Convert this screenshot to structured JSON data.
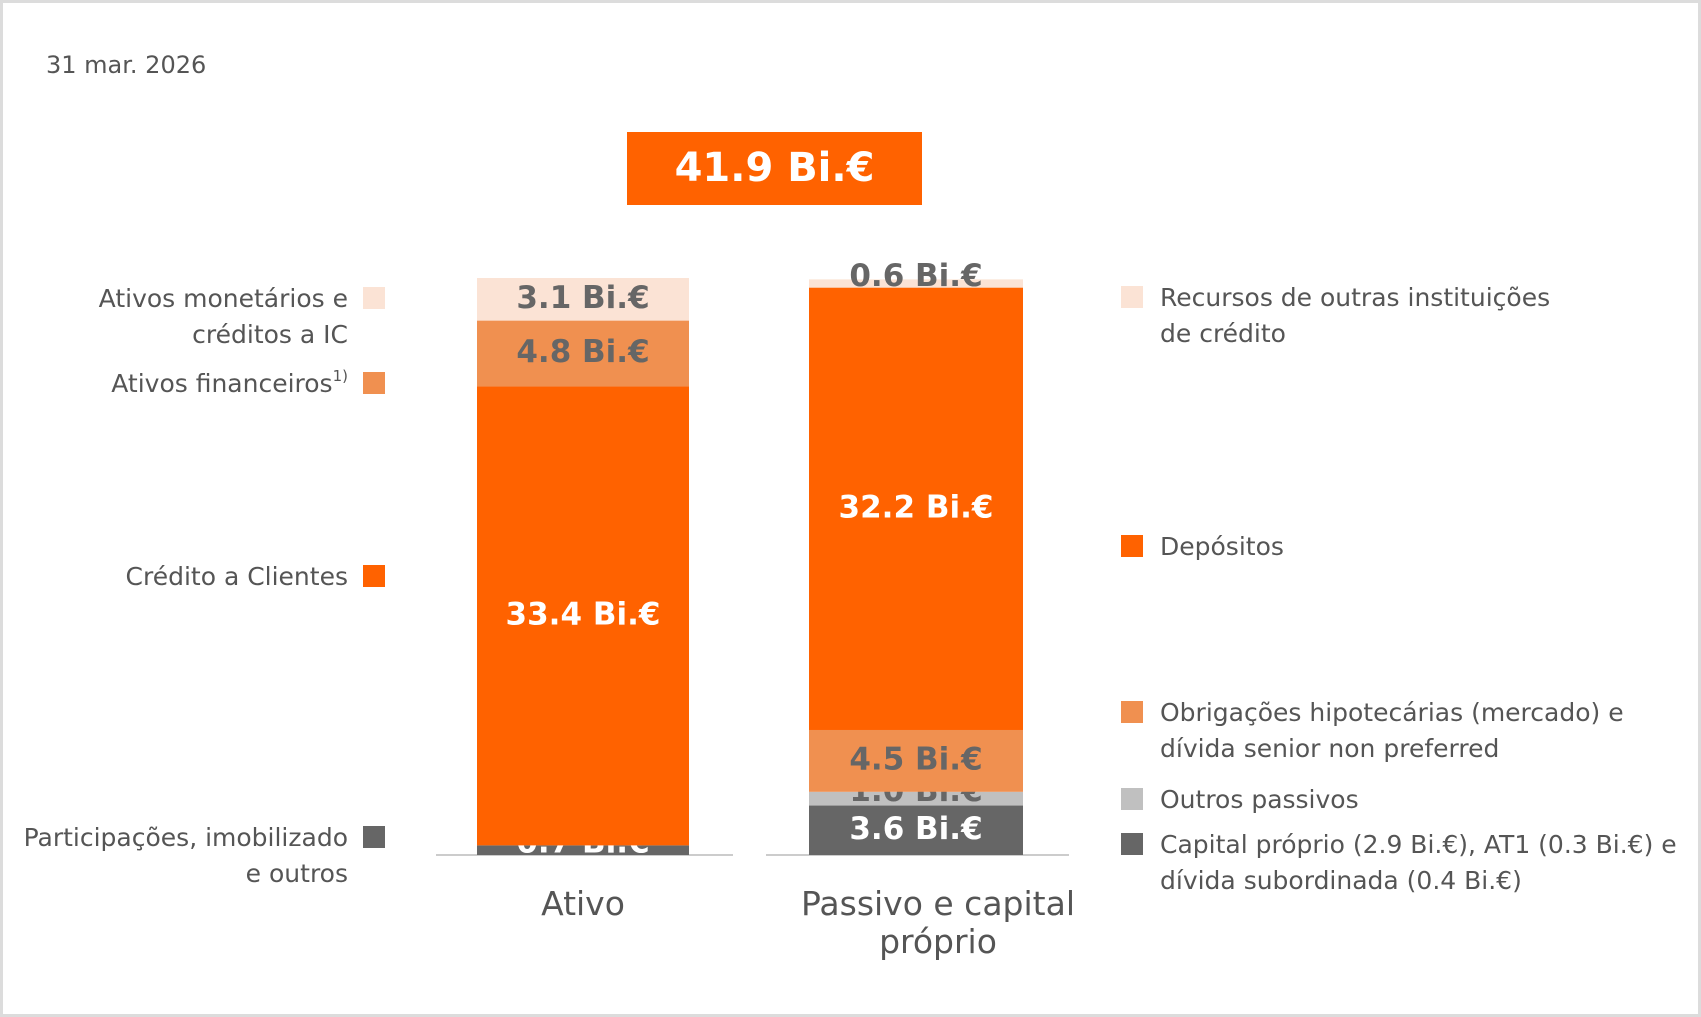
{
  "chart_data": {
    "type": "stacked_bar",
    "date": "31 mar. 2026",
    "total": 41.9,
    "total_label": "41.9 Bi.€",
    "categories": [
      "Ativo",
      "Passivo e capital próprio"
    ],
    "ylim": [
      0,
      42
    ],
    "series": [
      {
        "name": "Participações, imobilizado e outros",
        "color": "#666666",
        "label_color": "#ffffff",
        "values": [
          0.7,
          null
        ],
        "value_labels": [
          "0.7 Bi.€",
          null
        ]
      },
      {
        "name": "Crédito a Clientes",
        "color": "#ff6200",
        "label_color": "#ffffff",
        "values": [
          33.4,
          null
        ],
        "value_labels": [
          "33.4 Bi.€",
          null
        ]
      },
      {
        "name": "Ativos financeiros",
        "footnote": "1)",
        "color": "#f09050",
        "label_color": "#666666",
        "values": [
          4.8,
          null
        ],
        "value_labels": [
          "4.8 Bi.€",
          null
        ]
      },
      {
        "name": "Ativos monetários e créditos a IC",
        "color": "#fbe3d5",
        "label_color": "#666666",
        "values": [
          3.1,
          null
        ],
        "value_labels": [
          "3.1 Bi.€",
          null
        ]
      },
      {
        "name": "Capital próprio (2.9 Bi.€), AT1 (0.3 Bi.€) e dívida subordinada (0.4 Bi.€)",
        "color": "#666666",
        "label_color": "#ffffff",
        "values": [
          null,
          3.6
        ],
        "value_labels": [
          null,
          "3.6 Bi.€"
        ]
      },
      {
        "name": "Outros passivos",
        "color": "#c0c0c0",
        "label_color": "#666666",
        "values": [
          null,
          1.0
        ],
        "value_labels": [
          null,
          "1.0 Bi.€"
        ]
      },
      {
        "name": "Obrigações hipotecárias (mercado) e dívida senior non preferred",
        "color": "#f09050",
        "label_color": "#666666",
        "values": [
          null,
          4.5
        ],
        "value_labels": [
          null,
          "4.5 Bi.€"
        ]
      },
      {
        "name": "Depósitos",
        "color": "#ff6200",
        "label_color": "#ffffff",
        "values": [
          null,
          32.2
        ],
        "value_labels": [
          null,
          "32.2 Bi.€"
        ]
      },
      {
        "name": "Recursos de outras instituições de crédito",
        "color": "#fbe3d5",
        "label_color": "#666666",
        "values": [
          null,
          0.6
        ],
        "value_labels": [
          null,
          "0.6 Bi.€"
        ]
      }
    ]
  }
}
